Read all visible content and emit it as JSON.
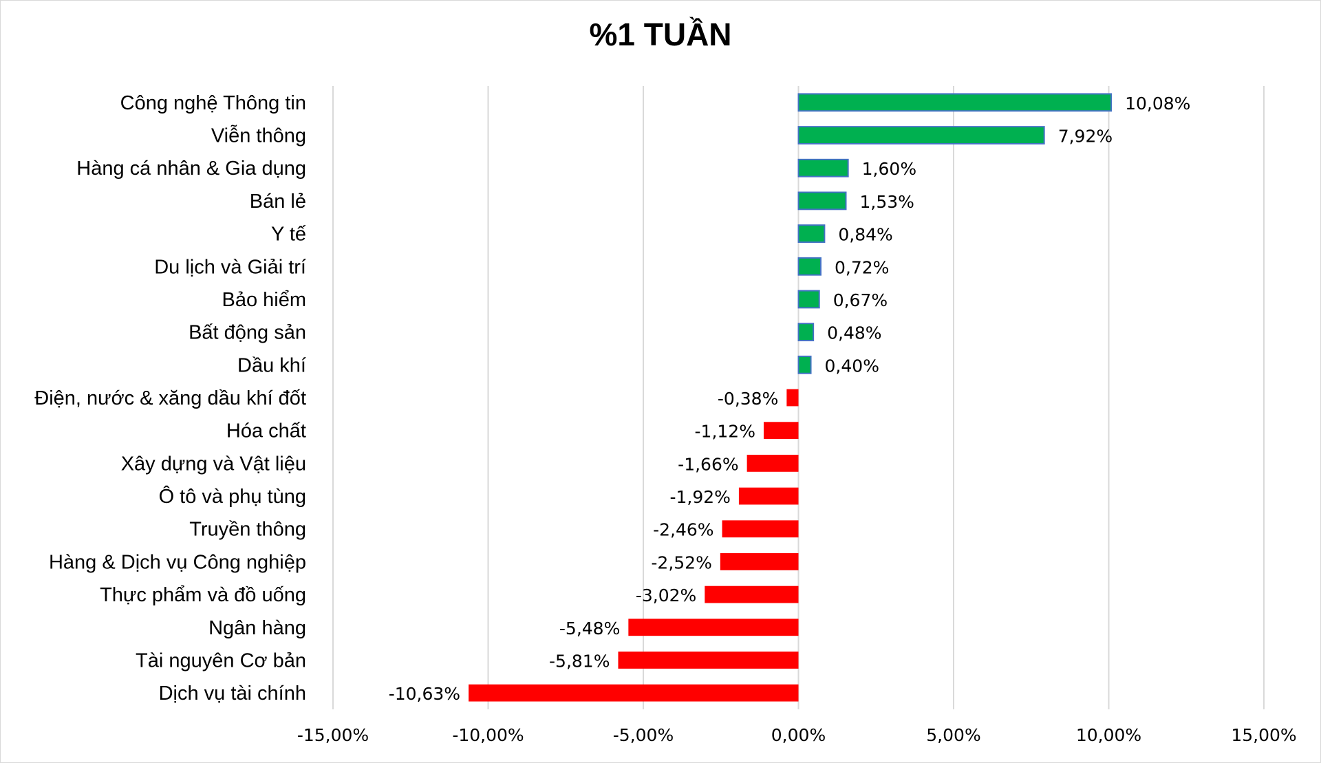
{
  "chart_data": {
    "type": "bar",
    "orientation": "horizontal",
    "title": "%1 TUẦN",
    "xlabel": "",
    "ylabel": "",
    "xlim": [
      -15,
      15
    ],
    "x_ticks": [
      -15,
      -10,
      -5,
      0,
      5,
      10,
      15
    ],
    "x_tick_labels": [
      "-15,00%",
      "-10,00%",
      "-5,00%",
      "0,00%",
      "5,00%",
      "10,00%",
      "15,00%"
    ],
    "grid": true,
    "legend": "none",
    "categories": [
      "Công nghệ Thông tin",
      "Viễn thông",
      "Hàng cá nhân & Gia dụng",
      "Bán lẻ",
      "Y tế",
      "Du lịch và Giải trí",
      "Bảo hiểm",
      "Bất động sản",
      "Dầu khí",
      "Điện, nước & xăng dầu khí đốt",
      "Hóa chất",
      "Xây dựng và Vật liệu",
      "Ô tô và phụ tùng",
      "Truyền thông",
      "Hàng & Dịch vụ Công nghiệp",
      "Thực phẩm và đồ uống",
      "Ngân hàng",
      "Tài nguyên Cơ bản",
      "Dịch vụ tài chính"
    ],
    "values": [
      10.08,
      7.92,
      1.6,
      1.53,
      0.84,
      0.72,
      0.67,
      0.48,
      0.4,
      -0.38,
      -1.12,
      -1.66,
      -1.92,
      -2.46,
      -2.52,
      -3.02,
      -5.48,
      -5.81,
      -10.63
    ],
    "value_labels": [
      "10,08%",
      "7,92%",
      "1,60%",
      "1,53%",
      "0,84%",
      "0,72%",
      "0,67%",
      "0,48%",
      "0,40%",
      "-0,38%",
      "-1,12%",
      "-1,66%",
      "-1,92%",
      "-2,46%",
      "-2,52%",
      "-3,02%",
      "-5,48%",
      "-5,81%",
      "-10,63%"
    ],
    "colors": {
      "positive": "#00b050",
      "positive_border": "#4472c4",
      "negative": "#ff0000",
      "gridline": "#d9d9d9",
      "text": "#000000"
    }
  }
}
